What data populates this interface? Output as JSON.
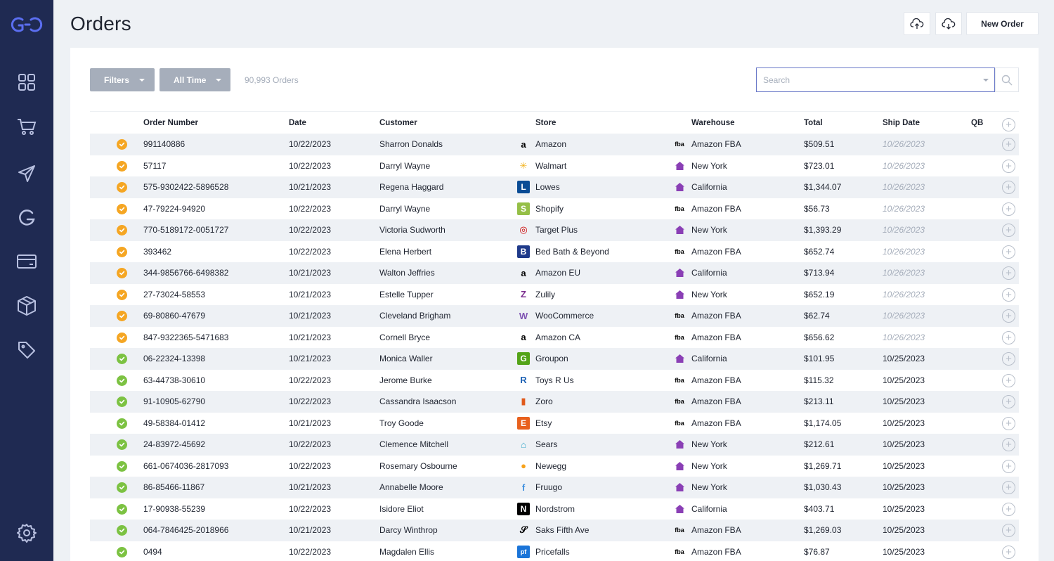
{
  "page": {
    "title": "Orders"
  },
  "toolbar": {
    "new_order_label": "New Order"
  },
  "filters": {
    "filters_label": "Filters",
    "time_label": "All Time",
    "order_count": "90,993 Orders"
  },
  "search": {
    "placeholder": "Search",
    "value": ""
  },
  "colors": {
    "sidebar": "#1f2a52",
    "accent": "#4a5fd1",
    "pending": "#f5a623",
    "done": "#7cc242",
    "warehouse": "#8a3fb5"
  },
  "table": {
    "columns": [
      "Order Number",
      "Date",
      "Customer",
      "Store",
      "Warehouse",
      "Total",
      "Ship Date",
      "QB"
    ],
    "rows": [
      {
        "status": "pending",
        "order": "991140886",
        "date": "10/22/2023",
        "customer": "Sharron Donalds",
        "store": "Amazon",
        "store_icon": "amazon-icon",
        "warehouse": "Amazon FBA",
        "wh_icon": "fba-icon",
        "total": "$509.51",
        "ship": "10/26/2023"
      },
      {
        "status": "pending",
        "order": "57117",
        "date": "10/22/2023",
        "customer": "Darryl Wayne",
        "store": "Walmart",
        "store_icon": "walmart-icon",
        "warehouse": "New York",
        "wh_icon": "home-icon",
        "total": "$723.01",
        "ship": "10/26/2023"
      },
      {
        "status": "pending",
        "order": "575-9302422-5896528",
        "date": "10/21/2023",
        "customer": "Regena Haggard",
        "store": "Lowes",
        "store_icon": "lowes-icon",
        "warehouse": "California",
        "wh_icon": "home-icon",
        "total": "$1,344.07",
        "ship": "10/26/2023"
      },
      {
        "status": "pending",
        "order": "47-79224-94920",
        "date": "10/22/2023",
        "customer": "Darryl Wayne",
        "store": "Shopify",
        "store_icon": "shopify-icon",
        "warehouse": "Amazon FBA",
        "wh_icon": "fba-icon",
        "total": "$56.73",
        "ship": "10/26/2023"
      },
      {
        "status": "pending",
        "order": "770-5189172-0051727",
        "date": "10/22/2023",
        "customer": "Victoria Sudworth",
        "store": "Target Plus",
        "store_icon": "target-icon",
        "warehouse": "New York",
        "wh_icon": "home-icon",
        "total": "$1,393.29",
        "ship": "10/26/2023"
      },
      {
        "status": "pending",
        "order": "393462",
        "date": "10/22/2023",
        "customer": "Elena Herbert",
        "store": "Bed Bath & Beyond",
        "store_icon": "bedbath-icon",
        "warehouse": "Amazon FBA",
        "wh_icon": "fba-icon",
        "total": "$652.74",
        "ship": "10/26/2023"
      },
      {
        "status": "pending",
        "order": "344-9856766-6498382",
        "date": "10/21/2023",
        "customer": "Walton Jeffries",
        "store": "Amazon EU",
        "store_icon": "amazon-eu-icon",
        "warehouse": "California",
        "wh_icon": "home-icon",
        "total": "$713.94",
        "ship": "10/26/2023"
      },
      {
        "status": "pending",
        "order": "27-73024-58553",
        "date": "10/21/2023",
        "customer": "Estelle Tupper",
        "store": "Zulily",
        "store_icon": "zulily-icon",
        "warehouse": "New York",
        "wh_icon": "home-icon",
        "total": "$652.19",
        "ship": "10/26/2023"
      },
      {
        "status": "pending",
        "order": "69-80860-47679",
        "date": "10/21/2023",
        "customer": "Cleveland Brigham",
        "store": "WooCommerce",
        "store_icon": "woocommerce-icon",
        "warehouse": "Amazon FBA",
        "wh_icon": "fba-icon",
        "total": "$62.74",
        "ship": "10/26/2023"
      },
      {
        "status": "pending",
        "order": "847-9322365-5471683",
        "date": "10/21/2023",
        "customer": "Cornell Bryce",
        "store": "Amazon CA",
        "store_icon": "amazon-ca-icon",
        "warehouse": "Amazon FBA",
        "wh_icon": "fba-icon",
        "total": "$656.62",
        "ship": "10/26/2023"
      },
      {
        "status": "done",
        "order": "06-22324-13398",
        "date": "10/21/2023",
        "customer": "Monica Waller",
        "store": "Groupon",
        "store_icon": "groupon-icon",
        "warehouse": "California",
        "wh_icon": "home-icon",
        "total": "$101.95",
        "ship": "10/25/2023"
      },
      {
        "status": "done",
        "order": "63-44738-30610",
        "date": "10/22/2023",
        "customer": "Jerome Burke",
        "store": "Toys R Us",
        "store_icon": "toysrus-icon",
        "warehouse": "Amazon FBA",
        "wh_icon": "fba-icon",
        "total": "$115.32",
        "ship": "10/25/2023"
      },
      {
        "status": "done",
        "order": "91-10905-62790",
        "date": "10/22/2023",
        "customer": "Cassandra Isaacson",
        "store": "Zoro",
        "store_icon": "zoro-icon",
        "warehouse": "Amazon FBA",
        "wh_icon": "fba-icon",
        "total": "$213.11",
        "ship": "10/25/2023"
      },
      {
        "status": "done",
        "order": "49-58384-01412",
        "date": "10/21/2023",
        "customer": "Troy Goode",
        "store": "Etsy",
        "store_icon": "etsy-icon",
        "warehouse": "Amazon FBA",
        "wh_icon": "fba-icon",
        "total": "$1,174.05",
        "ship": "10/25/2023"
      },
      {
        "status": "done",
        "order": "24-83972-45692",
        "date": "10/22/2023",
        "customer": "Clemence Mitchell",
        "store": "Sears",
        "store_icon": "sears-icon",
        "warehouse": "New York",
        "wh_icon": "home-icon",
        "total": "$212.61",
        "ship": "10/25/2023"
      },
      {
        "status": "done",
        "order": "661-0674036-2817093",
        "date": "10/22/2023",
        "customer": "Rosemary Osbourne",
        "store": "Newegg",
        "store_icon": "newegg-icon",
        "warehouse": "New York",
        "wh_icon": "home-icon",
        "total": "$1,269.71",
        "ship": "10/25/2023"
      },
      {
        "status": "done",
        "order": "86-85466-11867",
        "date": "10/21/2023",
        "customer": "Annabelle Moore",
        "store": "Fruugo",
        "store_icon": "fruugo-icon",
        "warehouse": "New York",
        "wh_icon": "home-icon",
        "total": "$1,030.43",
        "ship": "10/25/2023"
      },
      {
        "status": "done",
        "order": "17-90938-55239",
        "date": "10/22/2023",
        "customer": "Isidore Eliot",
        "store": "Nordstrom",
        "store_icon": "nordstrom-icon",
        "warehouse": "California",
        "wh_icon": "home-icon",
        "total": "$403.71",
        "ship": "10/25/2023"
      },
      {
        "status": "done",
        "order": "064-7846425-2018966",
        "date": "10/21/2023",
        "customer": "Darcy Winthrop",
        "store": "Saks Fifth Ave",
        "store_icon": "saks-icon",
        "warehouse": "Amazon FBA",
        "wh_icon": "fba-icon",
        "total": "$1,269.03",
        "ship": "10/25/2023"
      },
      {
        "status": "done",
        "order": "0494",
        "date": "10/22/2023",
        "customer": "Magdalen Ellis",
        "store": "Pricefalls",
        "store_icon": "pricefalls-icon",
        "warehouse": "Amazon FBA",
        "wh_icon": "fba-icon",
        "total": "$76.87",
        "ship": "10/25/2023"
      }
    ]
  }
}
